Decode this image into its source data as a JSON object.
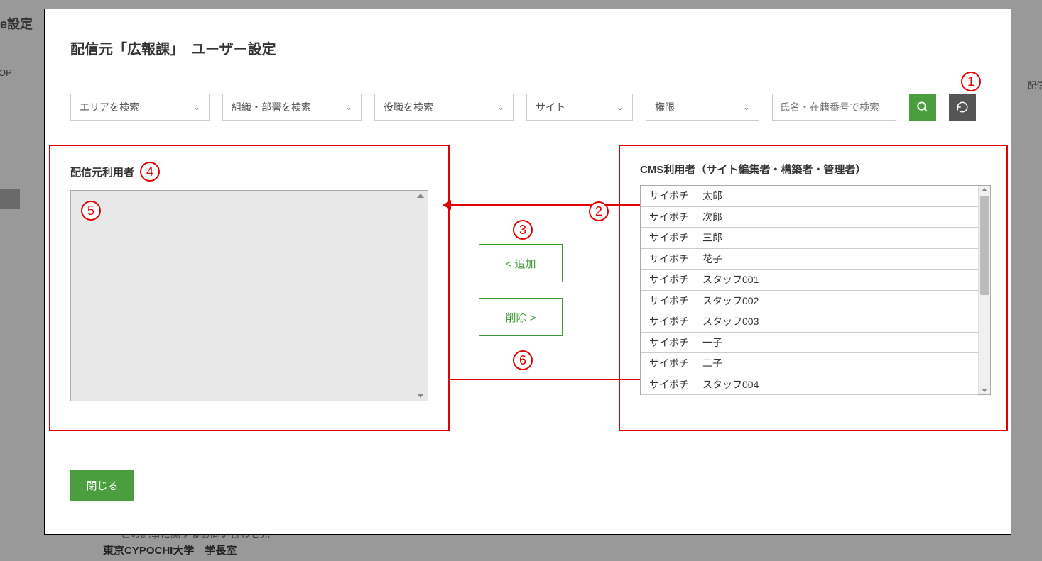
{
  "background": {
    "top_text": "ase設定",
    "op_text": "OP",
    "right_text": "配信",
    "bottom1": "この記事に関するお問い合わせ先",
    "bottom2": "東京CYPOCHI大学　学長室"
  },
  "modal": {
    "title": "配信元「広報課」　ユーザー設定",
    "dropdowns": {
      "area": "エリアを検索",
      "org": "組織・部署を検索",
      "position": "役職を検索",
      "site": "サイト",
      "permission": "権限"
    },
    "search_placeholder": "氏名・在籍番号で検索",
    "left_panel_title": "配信元利用者",
    "right_panel_title": "CMS利用者（サイト編集者・構築者・管理者）",
    "add_button": "< 追加",
    "remove_button": "削除 >",
    "close_button": "閉じる",
    "users": [
      {
        "family": "サイボチ",
        "given": "太郎"
      },
      {
        "family": "サイボチ",
        "given": "次郎"
      },
      {
        "family": "サイボチ",
        "given": "三郎"
      },
      {
        "family": "サイボチ",
        "given": "花子"
      },
      {
        "family": "サイボチ",
        "given": "スタッフ001"
      },
      {
        "family": "サイボチ",
        "given": "スタッフ002"
      },
      {
        "family": "サイボチ",
        "given": "スタッフ003"
      },
      {
        "family": "サイボチ",
        "given": "一子"
      },
      {
        "family": "サイボチ",
        "given": "二子"
      },
      {
        "family": "サイボチ",
        "given": "スタッフ004"
      }
    ],
    "annotations": {
      "a1": "1",
      "a2": "2",
      "a3": "3",
      "a4": "4",
      "a5": "5",
      "a6": "6"
    }
  },
  "colors": {
    "accent_red": "#e30000",
    "button_green": "#4a9e3e",
    "transfer_green": "#3d9a35"
  }
}
